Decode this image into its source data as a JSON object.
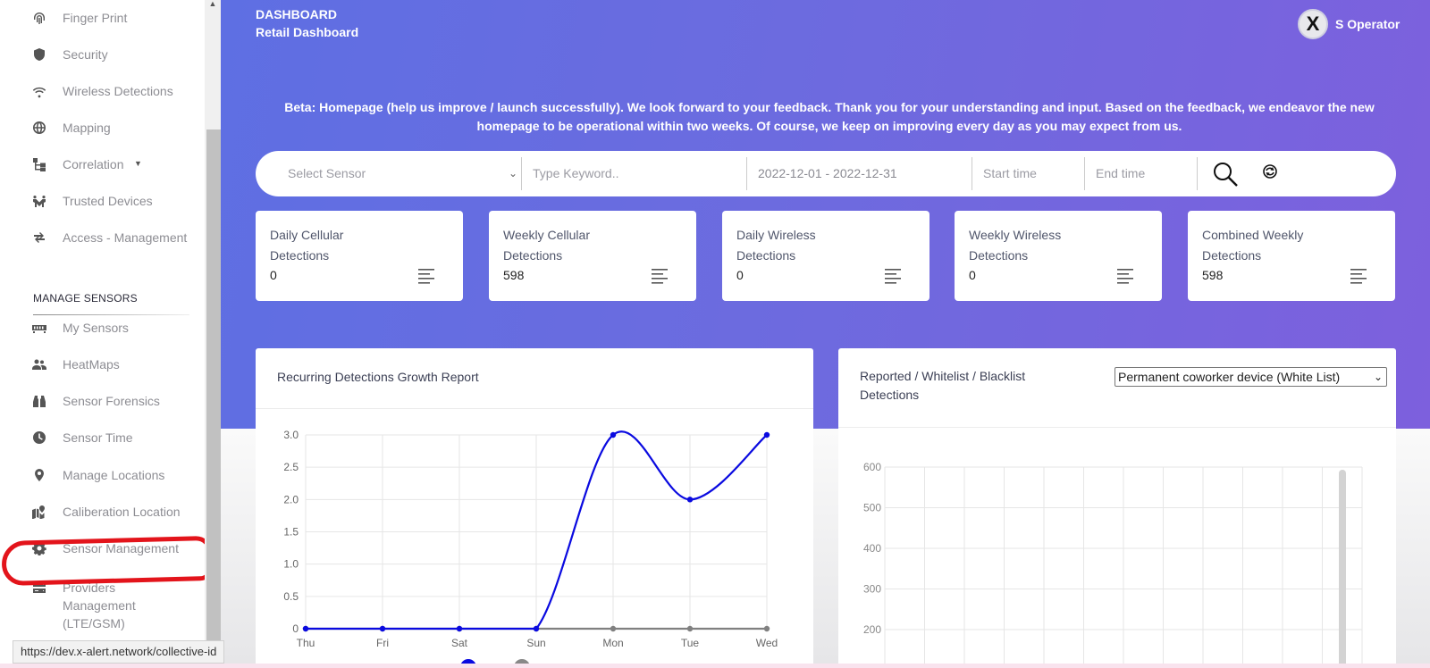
{
  "sidebar": {
    "items": [
      {
        "label": "Finger Print",
        "icon": "fingerprint-icon"
      },
      {
        "label": "Security",
        "icon": "shield-icon"
      },
      {
        "label": "Wireless Detections",
        "icon": "wifi-icon"
      },
      {
        "label": "Mapping",
        "icon": "globe-icon"
      },
      {
        "label": "Correlation",
        "icon": "hierarchy-icon"
      },
      {
        "label": "Trusted Devices",
        "icon": "handshake-icon"
      },
      {
        "label": "Access - Management",
        "icon": "access-icon"
      }
    ],
    "section_title": "MANAGE SENSORS",
    "sensor_items": [
      {
        "label": "My Sensors",
        "icon": "sensor-grid-icon"
      },
      {
        "label": "HeatMaps",
        "icon": "users-icon"
      },
      {
        "label": "Sensor Forensics",
        "icon": "binoculars-icon"
      },
      {
        "label": "Sensor Time",
        "icon": "clock-icon"
      },
      {
        "label": "Manage Locations",
        "icon": "location-pin-icon"
      },
      {
        "label": "Caliberation Location",
        "icon": "map-location-icon"
      },
      {
        "label": "Sensor Management",
        "icon": "gear-icon"
      },
      {
        "label": "Providers Management (LTE/GSM)",
        "icon": "server-icon"
      }
    ]
  },
  "status_url": "https://dev.x-alert.network/collective-id",
  "header": {
    "section": "DASHBOARD",
    "page_title": "Retail Dashboard",
    "avatar_letter": "X",
    "user_name": "S Operator"
  },
  "beta_notice": "Beta: Homepage (help us improve / launch successfully). We look forward to your feedback. Thank you for your understanding and input. Based on the feedback, we endeavor the new homepage to be operational within two weeks. Of course, we keep on improving every day as you may expect from us.",
  "search": {
    "sensor_placeholder": "Select Sensor",
    "keyword_placeholder": "Type Keyword..",
    "date_range": "2022-12-01 - 2022-12-31",
    "start_placeholder": "Start time",
    "end_placeholder": "End time"
  },
  "cards": [
    {
      "title": "Daily Cellular Detections",
      "value": "0"
    },
    {
      "title": "Weekly Cellular Detections",
      "value": "598"
    },
    {
      "title": "Daily Wireless Detections",
      "value": "0"
    },
    {
      "title": "Weekly Wireless Detections",
      "value": "0"
    },
    {
      "title": "Combined Weekly Detections",
      "value": "598"
    }
  ],
  "panels": {
    "left_title": "Recurring Detections Growth Report",
    "right_title": "Reported / Whitelist / Blacklist Detections",
    "right_select": "Permanent coworker device (White List)"
  },
  "chart_data": [
    {
      "type": "line",
      "title": "Recurring Detections Growth Report",
      "categories": [
        "Thu",
        "Fri",
        "Sat",
        "Sun",
        "Mon",
        "Tue",
        "Wed"
      ],
      "ylim": [
        0,
        3
      ],
      "yticks": [
        "0",
        "0.5",
        "1.0",
        "1.5",
        "2.0",
        "2.5",
        "3.0"
      ],
      "series": [
        {
          "values": [
            0,
            0,
            0,
            0,
            3,
            2,
            3
          ],
          "color": "#0a0ae0"
        },
        {
          "values": [
            0,
            0,
            0,
            0,
            0,
            0,
            0
          ],
          "color": "#808080"
        }
      ],
      "grid": true
    },
    {
      "type": "bar",
      "title": "Reported / Whitelist / Blacklist Detections",
      "ylim": [
        100,
        600
      ],
      "yticks": [
        "200",
        "300",
        "400",
        "500",
        "600"
      ],
      "grid": true
    }
  ]
}
